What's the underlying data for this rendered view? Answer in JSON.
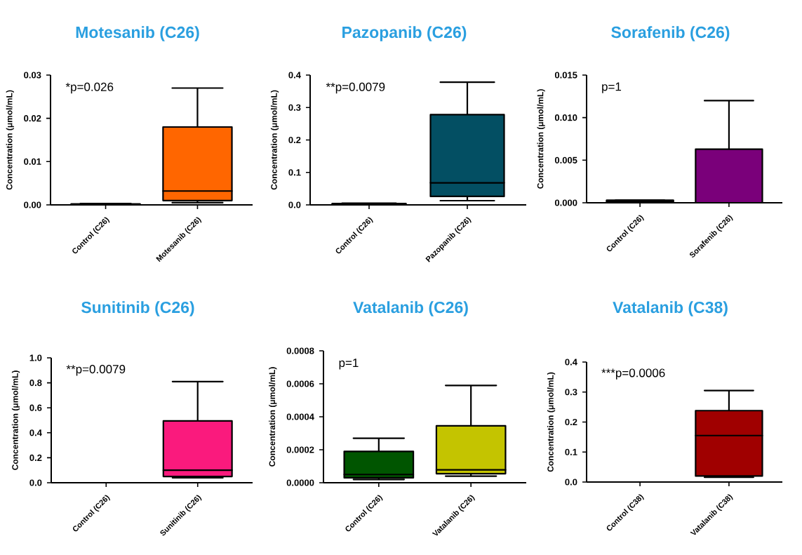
{
  "chart_data": [
    {
      "type": "box",
      "title": "Motesanib (C26)",
      "ylabel": "Concentration (μmol/mL)",
      "categories": [
        "Control (C26)",
        "Motesanib (C26)"
      ],
      "colors": [
        "#000000",
        "#ff6600"
      ],
      "boxes": [
        {
          "low": 0.0001,
          "q1": 0.0001,
          "median": 0.0002,
          "q3": 0.0002,
          "high": 0.0003
        },
        {
          "low": 0.0005,
          "q1": 0.001,
          "median": 0.0032,
          "q3": 0.018,
          "high": 0.027
        }
      ],
      "ylim": [
        0,
        0.03
      ],
      "yticks": [
        {
          "value": 0,
          "label": "0.00"
        },
        {
          "value": 0.01,
          "label": "0.01"
        },
        {
          "value": 0.02,
          "label": "0.02"
        },
        {
          "value": 0.03,
          "label": "0.03"
        }
      ],
      "annotations": [
        "*p=0.026"
      ]
    },
    {
      "type": "box",
      "title": "Pazopanib (C26)",
      "ylabel": "Concentration (μmol/mL)",
      "categories": [
        "Control (C26)",
        "Pazopanib (C26)"
      ],
      "colors": [
        "#000000",
        "#034f63"
      ],
      "boxes": [
        {
          "low": 0.001,
          "q1": 0.002,
          "median": 0.003,
          "q3": 0.004,
          "high": 0.005
        },
        {
          "low": 0.013,
          "q1": 0.026,
          "median": 0.068,
          "q3": 0.278,
          "high": 0.378
        }
      ],
      "ylim": [
        0,
        0.4
      ],
      "yticks": [
        {
          "value": 0,
          "label": "0.0"
        },
        0.1,
        0.2,
        0.3,
        0.4
      ],
      "annotations": [
        "**p=0.0079"
      ]
    },
    {
      "type": "box",
      "title": "Sorafenib (C26)",
      "ylabel": "Concentration (μmol/mL)",
      "categories": [
        "Control (C26)",
        "Sorafenib (C26)"
      ],
      "colors": [
        "#000000",
        "#7a007a"
      ],
      "boxes": [
        {
          "low": 0.0001,
          "q1": 0.0001,
          "median": 0.0002,
          "q3": 0.0003,
          "high": 0.0003
        },
        {
          "low": 0,
          "q1": 0,
          "median": 0,
          "q3": 0.0063,
          "high": 0.012
        }
      ],
      "ylim": [
        0,
        0.015
      ],
      "yticks": [
        {
          "value": 0,
          "label": "0.000"
        },
        0.005,
        {
          "value": 0.01,
          "label": "0.010"
        },
        0.015
      ],
      "annotations": [
        "p=1"
      ]
    },
    {
      "type": "box",
      "title": "Sunitinib (C26)",
      "ylabel": "Concentration (μmol/mL)",
      "categories": [
        "Control (C26)",
        "Sunitinib (C26)"
      ],
      "colors": [
        "#000000",
        "#fa1a7d"
      ],
      "boxes": [
        null,
        {
          "low": 0.04,
          "q1": 0.05,
          "median": 0.1,
          "q3": 0.495,
          "high": 0.81
        }
      ],
      "ylim": [
        0,
        1.0
      ],
      "yticks": [
        {
          "value": 0,
          "label": "0.0"
        },
        0.2,
        0.4,
        0.6,
        0.8,
        {
          "value": 1,
          "label": "1.0"
        }
      ],
      "annotations": [
        "**p=0.0079"
      ]
    },
    {
      "type": "box",
      "title": "Vatalanib (C26)",
      "ylabel": "Concentration (μmol/mL)",
      "categories": [
        "Control (C26)",
        "Vatalanib (C26)"
      ],
      "colors": [
        "#005500",
        "#c4c400"
      ],
      "boxes": [
        {
          "low": 2e-05,
          "q1": 3e-05,
          "median": 5e-05,
          "q3": 0.00019,
          "high": 0.00027
        },
        {
          "low": 4e-05,
          "q1": 5.5e-05,
          "median": 7.8e-05,
          "q3": 0.000345,
          "high": 0.00059
        }
      ],
      "ylim": [
        0,
        0.0008
      ],
      "yticks": [
        {
          "value": 0,
          "label": "0.0000"
        },
        {
          "value": 0.0002,
          "label": "0.0002"
        },
        {
          "value": 0.0004,
          "label": "0.0004"
        },
        {
          "value": 0.0006,
          "label": "0.0006"
        },
        {
          "value": 0.0008,
          "label": "0.0008"
        }
      ],
      "annotations": [
        "p=1"
      ]
    },
    {
      "type": "box",
      "title": "Vatalanib (C38)",
      "ylabel": "Concentration (μmol/mL)",
      "categories": [
        "Control (C38)",
        "Vatalanib (C38)"
      ],
      "colors": [
        "#000000",
        "#a00000"
      ],
      "boxes": [
        null,
        {
          "low": 0.016,
          "q1": 0.02,
          "median": 0.155,
          "q3": 0.238,
          "high": 0.305
        }
      ],
      "ylim": [
        0,
        0.4
      ],
      "yticks": [
        {
          "value": 0,
          "label": "0.0"
        },
        0.1,
        0.2,
        0.3,
        0.4
      ],
      "annotations": [
        "***p=0.0006"
      ]
    }
  ]
}
